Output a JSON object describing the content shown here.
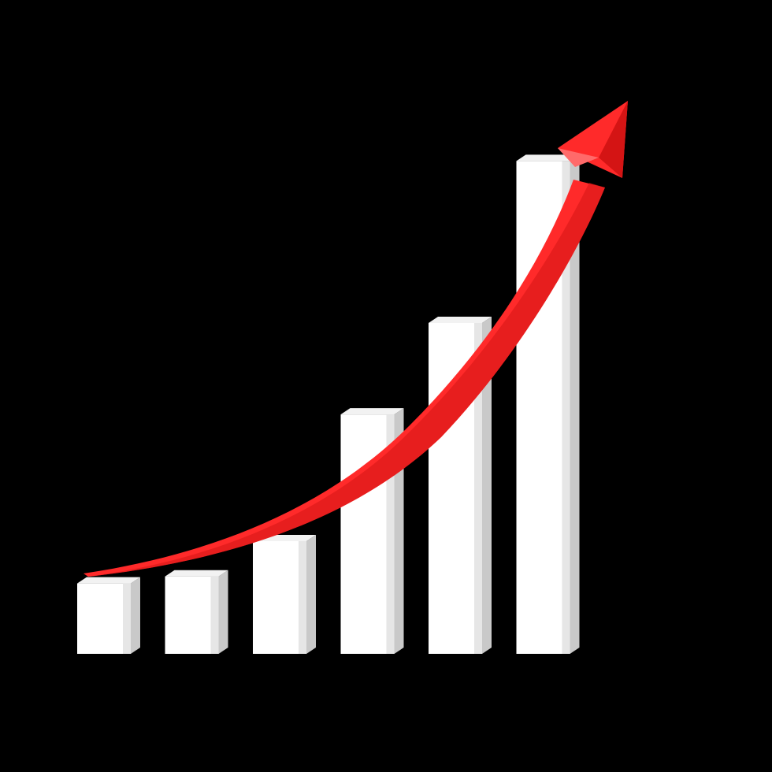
{
  "colors": {
    "background": "#000000",
    "bar_front": "#ffffff",
    "bar_side": "#c9c9c9",
    "bar_top": "#f2f2f2",
    "arrow": "#ff2a2a",
    "arrow_shadow": "#d41414",
    "arrow_highlight": "#ff6a6a"
  },
  "chart_data": {
    "type": "bar",
    "title": "",
    "xlabel": "",
    "ylabel": "",
    "categories": [
      "",
      "",
      "",
      "",
      "",
      ""
    ],
    "values": [
      1.0,
      1.1,
      1.6,
      3.4,
      4.7,
      7.0
    ],
    "ylim": [
      0,
      8
    ],
    "grid": false,
    "legend": "none",
    "style": "3d",
    "trend_arrow": {
      "direction": "up",
      "color": "#ff2a2a"
    }
  }
}
